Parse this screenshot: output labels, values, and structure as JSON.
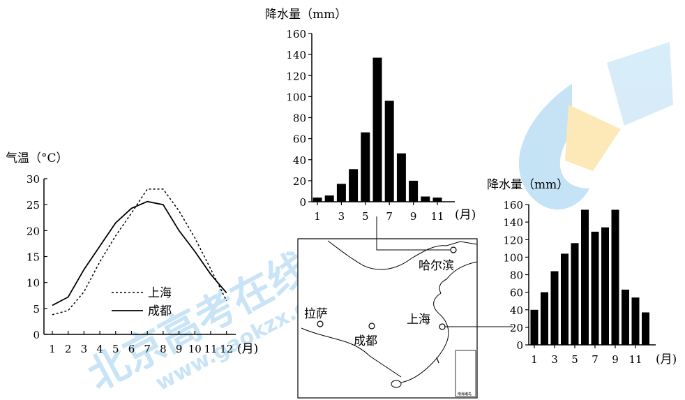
{
  "chart_data": [
    {
      "type": "line",
      "ylabel": "气温（°C）",
      "xlabel": "(月)",
      "x": [
        "1",
        "2",
        "3",
        "4",
        "5",
        "6",
        "7",
        "8",
        "9",
        "10",
        "11",
        "12"
      ],
      "ylim": [
        0,
        30
      ],
      "yticks": [
        0,
        5,
        10,
        15,
        20,
        25,
        30
      ],
      "legend_position": "bottom-right",
      "series": [
        {
          "name": "上海",
          "style": "dashed",
          "values": [
            3.8,
            4.6,
            8.2,
            14.0,
            19.0,
            23.4,
            28.0,
            28.0,
            23.8,
            18.6,
            12.6,
            6.5
          ]
        },
        {
          "name": "成都",
          "style": "solid",
          "values": [
            5.6,
            7.2,
            12.5,
            17.0,
            21.5,
            24.3,
            25.6,
            25.0,
            20.0,
            16.0,
            11.6,
            8.0
          ]
        }
      ]
    },
    {
      "type": "bar",
      "ylabel": "降水量（mm）",
      "xlabel": "(月)",
      "categories": [
        "1",
        "2",
        "3",
        "4",
        "5",
        "6",
        "7",
        "8",
        "9",
        "10",
        "11",
        "12"
      ],
      "tick_labels": [
        "1",
        "3",
        "5",
        "7",
        "9",
        "11"
      ],
      "ylim": [
        0,
        160
      ],
      "yticks": [
        0,
        20,
        40,
        60,
        80,
        100,
        120,
        140,
        160
      ],
      "values": [
        4,
        6,
        17,
        31,
        66,
        137,
        96,
        46,
        20,
        5,
        4,
        0
      ],
      "station": "哈尔滨"
    },
    {
      "type": "bar",
      "ylabel": "降水量（mm）",
      "xlabel": "(月)",
      "categories": [
        "1",
        "2",
        "3",
        "4",
        "5",
        "6",
        "7",
        "8",
        "9",
        "10",
        "11",
        "12"
      ],
      "tick_labels": [
        "1",
        "3",
        "5",
        "7",
        "9",
        "11"
      ],
      "ylim": [
        0,
        160
      ],
      "yticks": [
        0,
        20,
        40,
        60,
        80,
        100,
        120,
        140,
        160
      ],
      "values": [
        40,
        60,
        84,
        104,
        116,
        154,
        129,
        134,
        154,
        63,
        54,
        37
      ],
      "station": "上海"
    }
  ],
  "map": {
    "cities": [
      {
        "name": "哈尔滨"
      },
      {
        "name": "拉萨"
      },
      {
        "name": "成都"
      },
      {
        "name": "上海"
      }
    ],
    "inset_label": "南海诸岛"
  },
  "watermark": {
    "text1": "北京高考在线",
    "text2": "www.gaokzx.com",
    "brand_blue": "#bfe0f5",
    "brand_yellow": "#fde6b0"
  }
}
